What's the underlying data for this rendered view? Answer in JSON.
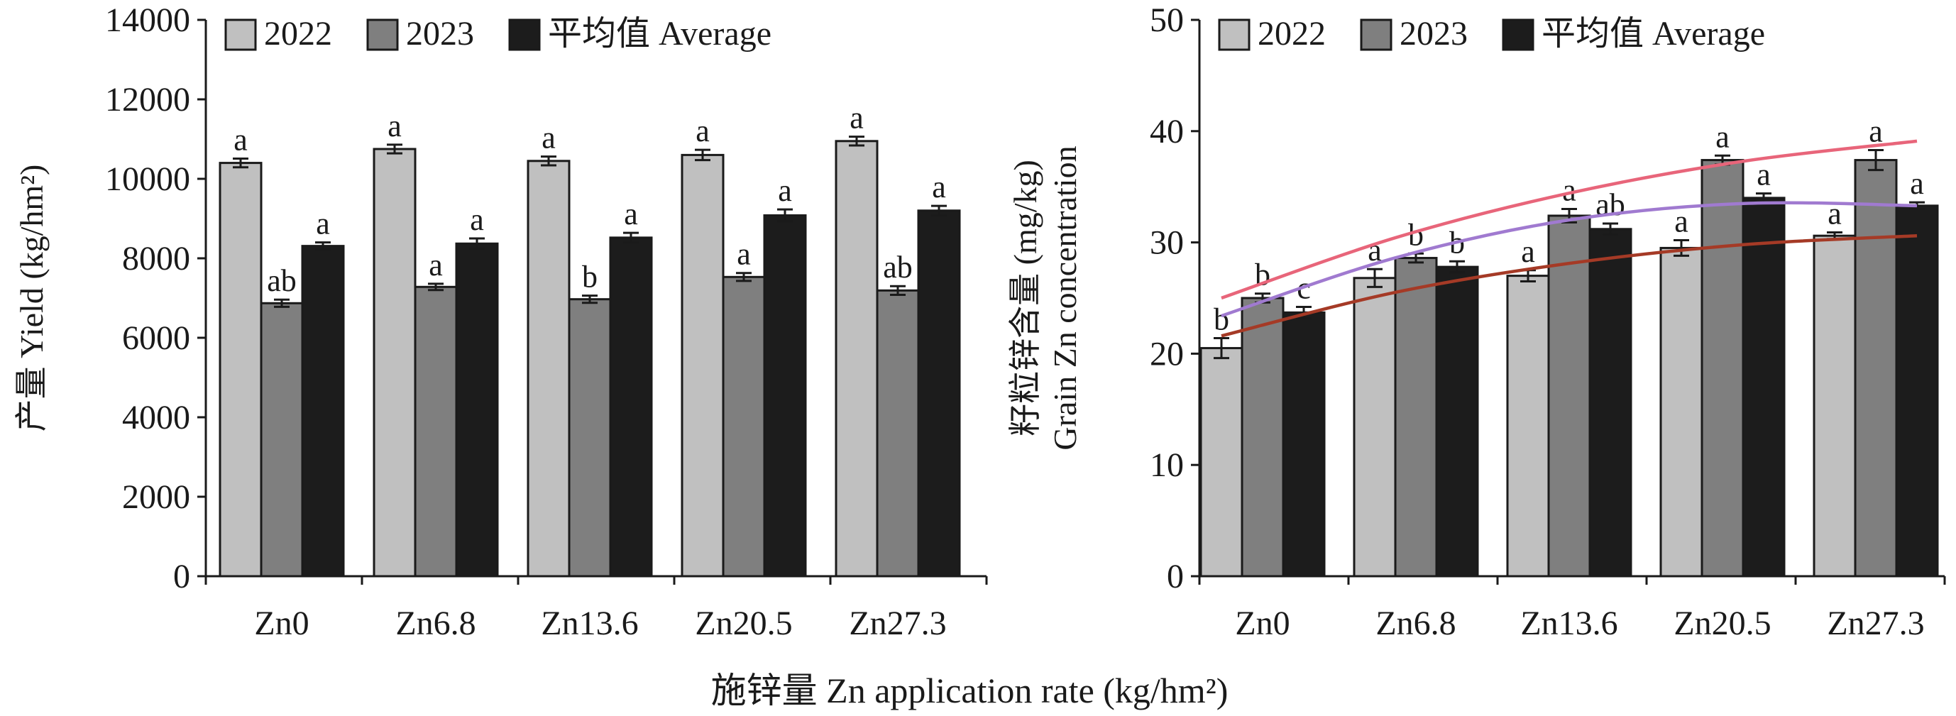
{
  "colors": {
    "2022": "#c0c0c0",
    "2023": "#7f7f7f",
    "average": "#1c1c1c",
    "axis": "#1a1a1a"
  },
  "x_axis_title": "施锌量 Zn application rate (kg/hm²)",
  "chart_data": [
    {
      "id": "yield",
      "type": "bar",
      "ylabel": "产量 Yield (kg/hm²)",
      "ylim": [
        0,
        14000
      ],
      "yticks": [
        0,
        2000,
        4000,
        6000,
        8000,
        10000,
        12000,
        14000
      ],
      "categories": [
        "Zn0",
        "Zn6.8",
        "Zn13.6",
        "Zn20.5",
        "Zn27.3"
      ],
      "legend": {
        "placement": "top",
        "entries": [
          "2022",
          "2023",
          "平均值 Average"
        ]
      },
      "series": [
        {
          "name": "2022",
          "values": [
            10400,
            10750,
            10450,
            10600,
            10950
          ],
          "errors": [
            110,
            110,
            110,
            130,
            110
          ],
          "labels": [
            "a",
            "a",
            "a",
            "a",
            "a"
          ]
        },
        {
          "name": "2023",
          "values": [
            6870,
            7280,
            6970,
            7530,
            7190
          ],
          "errors": [
            90,
            80,
            90,
            100,
            110
          ],
          "labels": [
            "ab",
            "a",
            "b",
            "a",
            "ab"
          ]
        },
        {
          "name": "平均值 Average",
          "values": [
            8310,
            8370,
            8520,
            9080,
            9200
          ],
          "errors": [
            90,
            130,
            120,
            150,
            120
          ],
          "labels": [
            "a",
            "a",
            "a",
            "a",
            "a"
          ]
        }
      ],
      "trend_lines": []
    },
    {
      "id": "grain_zn",
      "type": "bar",
      "ylabel_line1": "籽粒锌含量 (mg/kg)",
      "ylabel_line2": "Grain Zn concentration",
      "ylim": [
        0,
        50
      ],
      "yticks": [
        0,
        10,
        20,
        30,
        40,
        50
      ],
      "categories": [
        "Zn0",
        "Zn6.8",
        "Zn13.6",
        "Zn20.5",
        "Zn27.3"
      ],
      "legend": {
        "placement": "top",
        "entries": [
          "2022",
          "2023",
          "平均值 Average"
        ]
      },
      "series": [
        {
          "name": "2022",
          "values": [
            20.5,
            26.8,
            27.0,
            29.5,
            30.6
          ],
          "errors": [
            0.9,
            0.8,
            0.5,
            0.7,
            0.3
          ],
          "labels": [
            "b",
            "a",
            "a",
            "a",
            "a"
          ]
        },
        {
          "name": "2023",
          "values": [
            25.0,
            28.6,
            32.4,
            37.4,
            37.4
          ],
          "errors": [
            0.4,
            0.4,
            0.6,
            0.4,
            0.9
          ],
          "labels": [
            "b",
            "b",
            "a",
            "a",
            "a"
          ]
        },
        {
          "name": "平均值 Average",
          "values": [
            23.7,
            27.8,
            31.2,
            34.0,
            33.3
          ],
          "errors": [
            0.5,
            0.5,
            0.5,
            0.4,
            0.3
          ],
          "labels": [
            "c",
            "b",
            "ab",
            "a",
            "a"
          ]
        }
      ],
      "trend_lines": [
        {
          "color": "#e8657a",
          "x": [
            0,
            6.8,
            13.6,
            20.5,
            27.3
          ],
          "y": [
            25.0,
            30.4,
            34.4,
            37.3,
            39.1
          ]
        },
        {
          "color": "#a07ad0",
          "x": [
            0,
            6.8,
            13.6,
            20.5,
            27.3
          ],
          "y": [
            23.4,
            28.6,
            32.0,
            33.5,
            33.3
          ]
        },
        {
          "color": "#a53a26",
          "x": [
            0,
            6.8,
            13.6,
            20.5,
            27.3
          ],
          "y": [
            21.6,
            25.5,
            28.1,
            29.8,
            30.6
          ]
        }
      ]
    }
  ]
}
